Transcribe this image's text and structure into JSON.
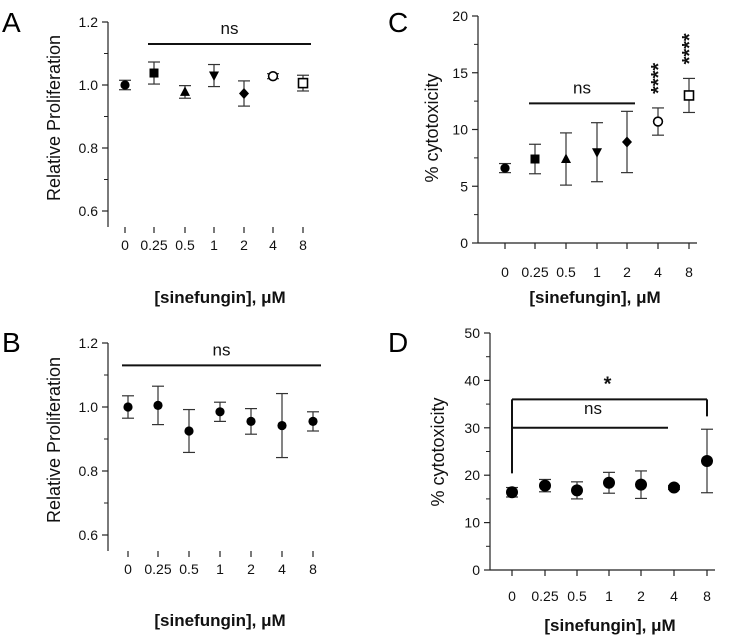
{
  "chart_data": [
    {
      "panel": "A",
      "type": "scatter",
      "ylabel": "Relative Proliferation",
      "xlabel": "[sinefungin], μM",
      "categories": [
        "0",
        "0.25",
        "0.5",
        "1",
        "2",
        "4",
        "8"
      ],
      "ylim": [
        0.5,
        1.2
      ],
      "yticks": [
        "0.6",
        "0.8",
        "1.0",
        "1.2"
      ],
      "series": [
        {
          "x": "0",
          "marker": "circle",
          "mean": 1.0,
          "err": 0.015
        },
        {
          "x": "0.25",
          "marker": "square",
          "mean": 1.038,
          "err": 0.035
        },
        {
          "x": "0.5",
          "marker": "triangle",
          "mean": 0.978,
          "err": 0.02
        },
        {
          "x": "1",
          "marker": "triangle-down",
          "mean": 1.03,
          "err": 0.035
        },
        {
          "x": "2",
          "marker": "diamond",
          "mean": 0.973,
          "err": 0.04
        },
        {
          "x": "4",
          "marker": "circle-open",
          "mean": 1.028,
          "err": 0.008
        },
        {
          "x": "8",
          "marker": "square-open",
          "mean": 1.006,
          "err": 0.025
        }
      ],
      "annotations": [
        {
          "label": "ns",
          "from": "0.25",
          "to": "8",
          "y": 1.13
        }
      ]
    },
    {
      "panel": "C",
      "type": "scatter",
      "ylabel": "% cytotoxicity",
      "xlabel": "[sinefungin], μM",
      "categories": [
        "0",
        "0.25",
        "0.5",
        "1",
        "2",
        "4",
        "8"
      ],
      "ylim": [
        0,
        20
      ],
      "yticks": [
        "0",
        "5",
        "10",
        "15",
        "20"
      ],
      "series": [
        {
          "x": "0",
          "marker": "circle",
          "mean": 6.6,
          "err": 0.4
        },
        {
          "x": "0.25",
          "marker": "square",
          "mean": 7.4,
          "err": 1.3
        },
        {
          "x": "0.5",
          "marker": "triangle",
          "mean": 7.4,
          "err": 2.3
        },
        {
          "x": "1",
          "marker": "triangle-down",
          "mean": 8.0,
          "err": 2.6
        },
        {
          "x": "2",
          "marker": "diamond",
          "mean": 8.9,
          "err": 2.7
        },
        {
          "x": "4",
          "marker": "circle-open",
          "mean": 10.7,
          "err": 1.2,
          "sig": "****"
        },
        {
          "x": "8",
          "marker": "square-open",
          "mean": 13.0,
          "err": 1.5,
          "sig": "****"
        }
      ],
      "annotations": [
        {
          "label": "ns",
          "from": "0.25",
          "to": "2",
          "y": 12.3
        }
      ]
    },
    {
      "panel": "B",
      "type": "scatter",
      "ylabel": "Relative Proliferation",
      "xlabel": "[sinefungin], μM",
      "categories": [
        "0",
        "0.25",
        "0.5",
        "1",
        "2",
        "4",
        "8"
      ],
      "ylim": [
        0.5,
        1.2
      ],
      "yticks": [
        "0.6",
        "0.8",
        "1.0",
        "1.2"
      ],
      "series": [
        {
          "x": "0",
          "marker": "circle",
          "mean": 1.0,
          "err": 0.035
        },
        {
          "x": "0.25",
          "marker": "circle",
          "mean": 1.005,
          "err": 0.06
        },
        {
          "x": "0.5",
          "marker": "circle",
          "mean": 0.925,
          "err": 0.067
        },
        {
          "x": "1",
          "marker": "circle",
          "mean": 0.985,
          "err": 0.03
        },
        {
          "x": "2",
          "marker": "circle",
          "mean": 0.955,
          "err": 0.04
        },
        {
          "x": "4",
          "marker": "circle",
          "mean": 0.942,
          "err": 0.1
        },
        {
          "x": "8",
          "marker": "circle",
          "mean": 0.955,
          "err": 0.03
        }
      ],
      "annotations": [
        {
          "label": "ns",
          "from": "0",
          "to": "8",
          "y": 1.13
        }
      ]
    },
    {
      "panel": "D",
      "type": "scatter",
      "ylabel": "% cytotoxicity",
      "xlabel": "[sinefungin], μM",
      "categories": [
        "0",
        "0.25",
        "0.5",
        "1",
        "2",
        "4",
        "8"
      ],
      "ylim": [
        0,
        50
      ],
      "yticks": [
        "0",
        "10",
        "20",
        "30",
        "40",
        "50"
      ],
      "series": [
        {
          "x": "0",
          "marker": "circle-large",
          "mean": 16.4,
          "err": 1.0
        },
        {
          "x": "0.25",
          "marker": "circle-large",
          "mean": 17.8,
          "err": 1.3
        },
        {
          "x": "0.5",
          "marker": "circle-large",
          "mean": 16.8,
          "err": 1.8
        },
        {
          "x": "1",
          "marker": "circle-large",
          "mean": 18.4,
          "err": 2.2
        },
        {
          "x": "2",
          "marker": "circle-large",
          "mean": 18.0,
          "err": 2.9
        },
        {
          "x": "4",
          "marker": "circle-large",
          "mean": 17.4,
          "err": 0.4
        },
        {
          "x": "8",
          "marker": "circle-large",
          "mean": 23.0,
          "err": 6.7
        }
      ],
      "annotations": [
        {
          "label": "ns",
          "from": "0",
          "to": "4",
          "y": 30,
          "style": "bracket"
        },
        {
          "label": "*",
          "from": "0",
          "to": "8",
          "y": 36,
          "style": "bracket"
        }
      ]
    }
  ]
}
